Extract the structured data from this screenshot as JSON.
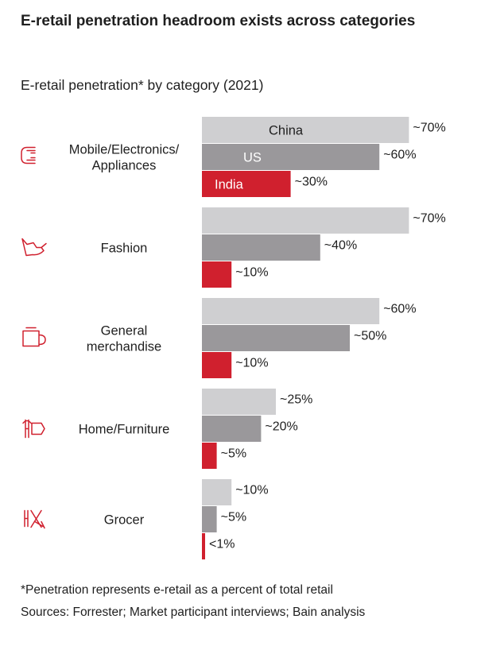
{
  "title": "E-retail penetration headroom exists across categories",
  "subtitle": "E-retail penetration* by category (2021)",
  "footnote": "*Penetration represents e-retail as a percent of total retail",
  "sources": "Sources: Forrester; Market participant interviews; Bain analysis",
  "chart_data": {
    "type": "bar",
    "orientation": "horizontal",
    "xlim": [
      0,
      70
    ],
    "grid": false,
    "legend": "inline labels on first group",
    "categories": [
      {
        "label_lines": [
          "Mobile/Electronics/",
          "Appliances"
        ],
        "icon": "phone-icon"
      },
      {
        "label_lines": [
          "Fashion"
        ],
        "icon": "shoe-icon"
      },
      {
        "label_lines": [
          "General",
          "merchandise"
        ],
        "icon": "mug-icon"
      },
      {
        "label_lines": [
          "Home/Furniture"
        ],
        "icon": "lamp-icon"
      },
      {
        "label_lines": [
          "Grocer"
        ],
        "icon": "fork-icon"
      }
    ],
    "series": [
      {
        "name": "China",
        "color": "#cfcfd1",
        "label_color": "#1f1f1f",
        "values": [
          70,
          70,
          60,
          25,
          10
        ],
        "value_labels": [
          "~70%",
          "~70%",
          "~60%",
          "~25%",
          "~10%"
        ]
      },
      {
        "name": "US",
        "color": "#9a989b",
        "label_color": "#ffffff",
        "values": [
          60,
          40,
          50,
          20,
          5
        ],
        "value_labels": [
          "~60%",
          "~40%",
          "~50%",
          "~20%",
          "~5%"
        ]
      },
      {
        "name": "India",
        "color": "#d0202e",
        "label_color": "#ffffff",
        "values": [
          30,
          10,
          10,
          5,
          1
        ],
        "value_labels": [
          "~30%",
          "~10%",
          "~10%",
          "~5%",
          "<1%"
        ]
      }
    ]
  }
}
